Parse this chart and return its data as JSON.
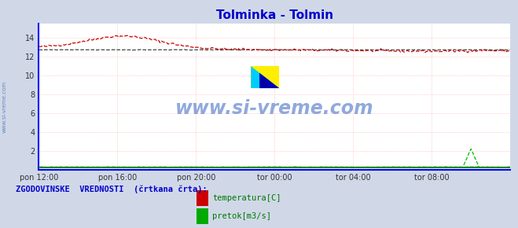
{
  "title": "Tolminka - Tolmin",
  "title_color": "#0000cc",
  "bg_color": "#d0d8e8",
  "plot_bg_color": "#ffffff",
  "grid_color": "#ffaaaa",
  "ylim": [
    0,
    15.5
  ],
  "yticks": [
    2,
    4,
    6,
    8,
    10,
    12,
    14
  ],
  "xlim": [
    0,
    288
  ],
  "xtick_labels": [
    "pon 12:00",
    "pon 16:00",
    "pon 20:00",
    "tor 00:00",
    "tor 04:00",
    "tor 08:00"
  ],
  "xtick_positions": [
    0,
    48,
    96,
    144,
    192,
    240
  ],
  "watermark": "www.si-vreme.com",
  "watermark_color": "#2255bb",
  "footer_text": "ZGODOVINSKE  VREDNOSTI  (črtkana črta):",
  "footer_color": "#0000cc",
  "legend_label1": "temperatura[C]",
  "legend_label2": "pretok[m3/s]",
  "legend_color1": "#cc0000",
  "legend_color2": "#00aa00",
  "temp_color": "#cc0000",
  "flow_color": "#00bb00",
  "avg_temp_color": "#444444",
  "avg_flow_color": "#007700",
  "spine_color": "#0000ff",
  "arrow_color": "#cc0000"
}
